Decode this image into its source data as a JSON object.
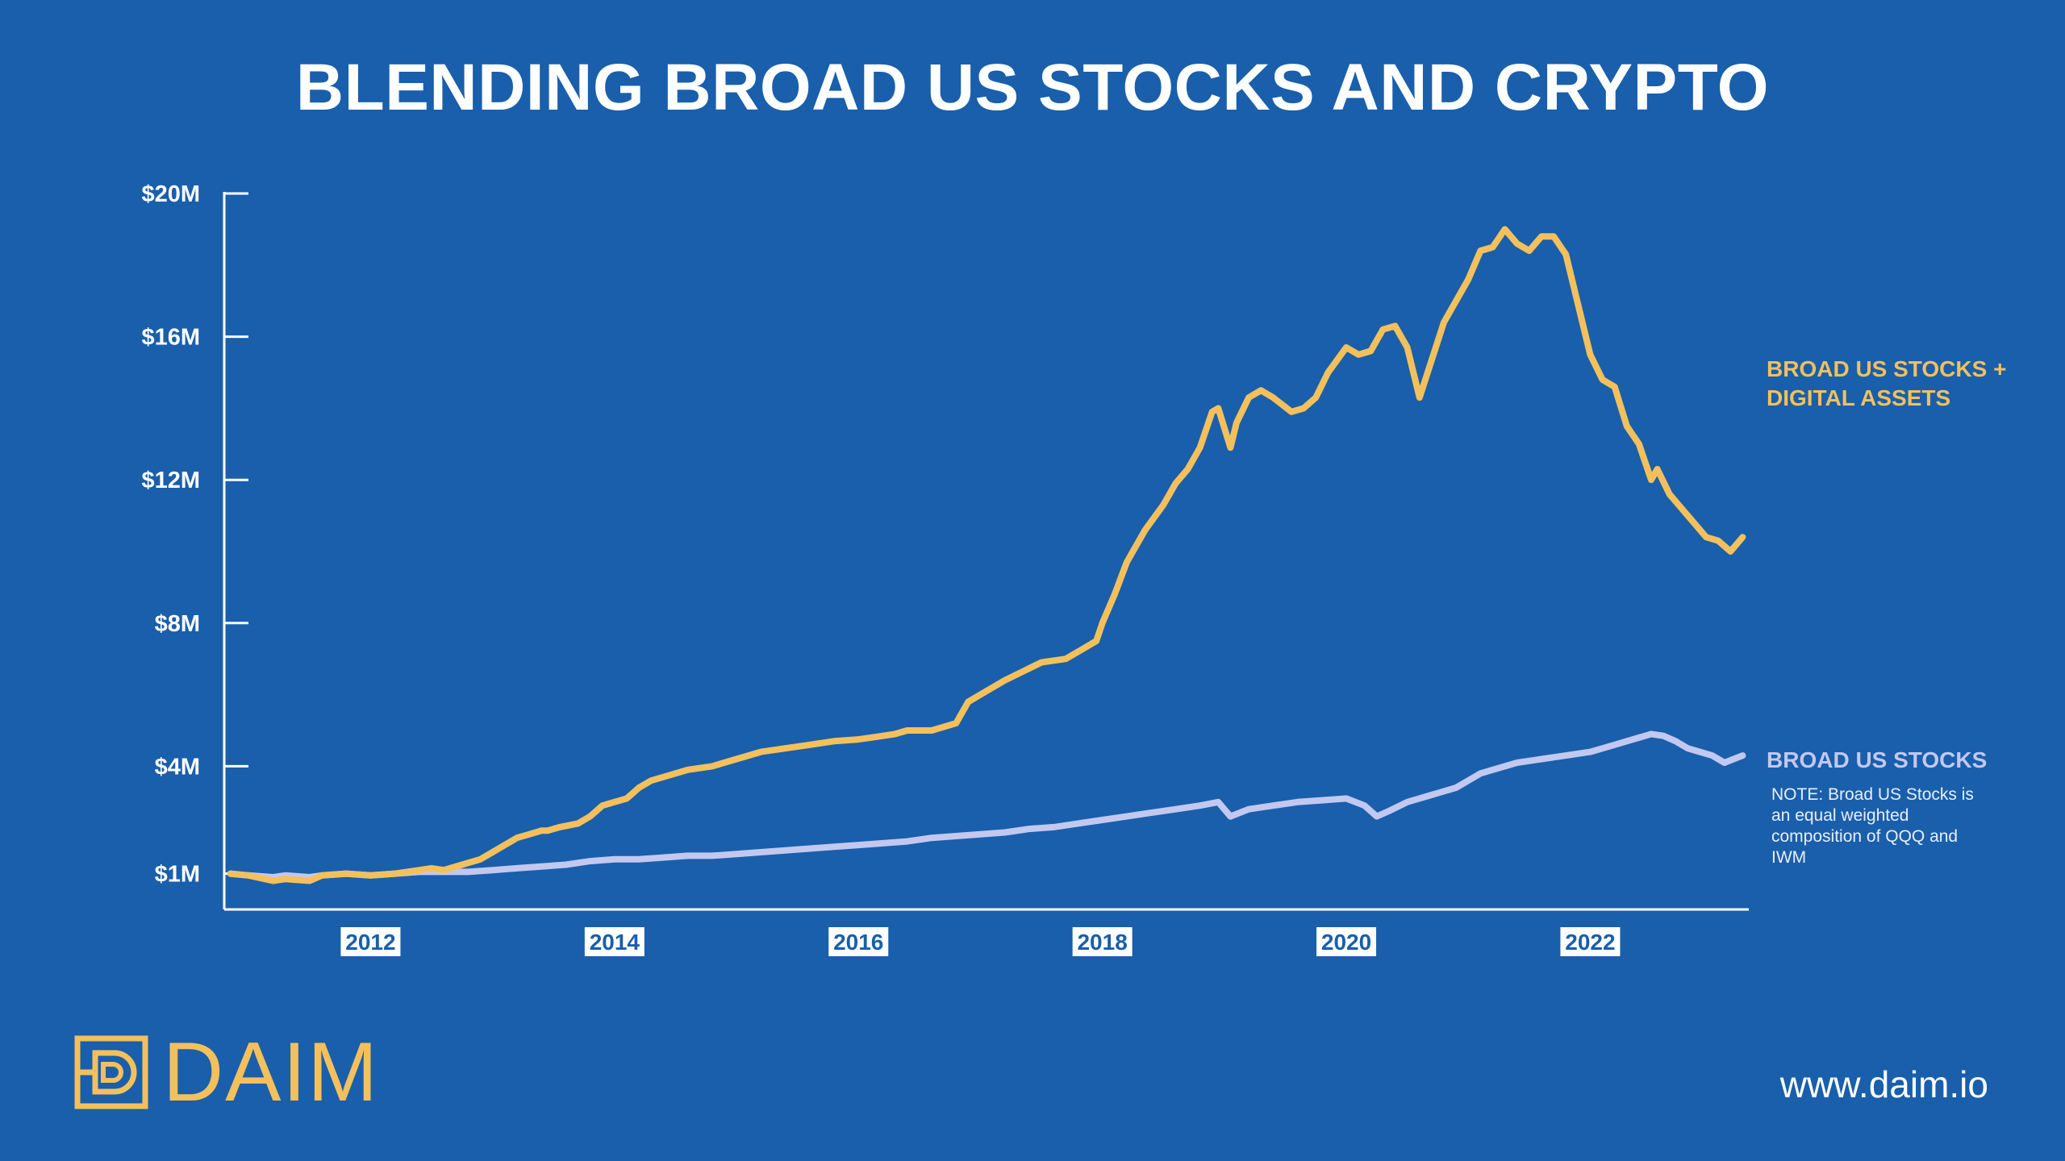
{
  "header": {
    "title": "BLENDING BROAD US STOCKS AND CRYPTO"
  },
  "colors": {
    "background": "#195fab",
    "crypto_series": "#f4c05c",
    "stocks_series": "#c3c8f0",
    "axis": "#ffffff"
  },
  "chart_data": {
    "type": "line",
    "title": "BLENDING BROAD US STOCKS AND CRYPTO",
    "xlabel": "",
    "ylabel": "",
    "xlim": [
      2010.8,
      2023.3
    ],
    "ylim": [
      0,
      20
    ],
    "y_ticks": [
      {
        "value": 1,
        "label": "$1M"
      },
      {
        "value": 4,
        "label": "$4M"
      },
      {
        "value": 8,
        "label": "$8M"
      },
      {
        "value": 12,
        "label": "$12M"
      },
      {
        "value": 16,
        "label": "$16M"
      },
      {
        "value": 20,
        "label": "$20M"
      }
    ],
    "x_ticks": [
      {
        "value": 2012,
        "label": "2012"
      },
      {
        "value": 2014,
        "label": "2014"
      },
      {
        "value": 2016,
        "label": "2016"
      },
      {
        "value": 2018,
        "label": "2018"
      },
      {
        "value": 2020,
        "label": "2020"
      },
      {
        "value": 2022,
        "label": "2022"
      }
    ],
    "series": [
      {
        "name": "BROAD US STOCKS + DIGITAL ASSETS",
        "color": "#f4c05c",
        "x": [
          2010.85,
          2011.0,
          2011.2,
          2011.3,
          2011.5,
          2011.6,
          2011.8,
          2012.0,
          2012.2,
          2012.4,
          2012.5,
          2012.6,
          2012.7,
          2012.75,
          2012.9,
          2013.0,
          2013.1,
          2013.2,
          2013.3,
          2013.4,
          2013.45,
          2013.55,
          2013.7,
          2013.8,
          2013.9,
          2014.1,
          2014.2,
          2014.3,
          2014.5,
          2014.6,
          2014.8,
          2015.0,
          2015.2,
          2015.4,
          2015.6,
          2015.8,
          2016.0,
          2016.1,
          2016.3,
          2016.4,
          2016.6,
          2016.8,
          2016.9,
          2017.0,
          2017.2,
          2017.5,
          2017.7,
          2017.85,
          2017.95,
          2018.0,
          2018.1,
          2018.2,
          2018.35,
          2018.5,
          2018.6,
          2018.7,
          2018.8,
          2018.9,
          2018.95,
          2019.05,
          2019.1,
          2019.2,
          2019.3,
          2019.4,
          2019.55,
          2019.65,
          2019.75,
          2019.85,
          2020.0,
          2020.1,
          2020.2,
          2020.3,
          2020.4,
          2020.5,
          2020.6,
          2020.8,
          2021.0,
          2021.1,
          2021.2,
          2021.3,
          2021.4,
          2021.5,
          2021.6,
          2021.7,
          2021.8,
          2021.9,
          2022.0,
          2022.1,
          2022.2,
          2022.3,
          2022.4,
          2022.5,
          2022.55,
          2022.65,
          2022.75,
          2022.85,
          2022.95,
          2023.05,
          2023.15,
          2023.25
        ],
        "values": [
          1.0,
          0.95,
          0.8,
          0.85,
          0.8,
          0.95,
          1.0,
          0.95,
          1.0,
          1.1,
          1.15,
          1.1,
          1.2,
          1.25,
          1.4,
          1.6,
          1.8,
          2.0,
          2.1,
          2.2,
          2.2,
          2.3,
          2.4,
          2.6,
          2.9,
          3.1,
          3.4,
          3.6,
          3.8,
          3.9,
          4.0,
          4.2,
          4.4,
          4.5,
          4.6,
          4.7,
          4.75,
          4.8,
          4.9,
          5.0,
          5.0,
          5.2,
          5.8,
          6.0,
          6.4,
          6.9,
          7.0,
          7.3,
          7.5,
          8.0,
          8.8,
          9.7,
          10.6,
          11.3,
          11.9,
          12.3,
          12.9,
          13.9,
          14.0,
          12.9,
          13.6,
          14.3,
          14.5,
          14.3,
          13.9,
          14.0,
          14.3,
          15.0,
          15.7,
          15.5,
          15.6,
          16.2,
          16.3,
          15.7,
          14.3,
          16.4,
          17.6,
          18.4,
          18.5,
          19.0,
          18.6,
          18.4,
          18.8,
          18.8,
          18.3,
          16.9,
          15.5,
          14.8,
          14.6,
          13.5,
          13.0,
          12.0,
          12.3,
          11.6,
          11.2,
          10.8,
          10.4,
          10.3,
          10.0,
          10.4
        ]
      },
      {
        "name": "BROAD US STOCKS",
        "color": "#c3c8f0",
        "x": [
          2010.85,
          2011.0,
          2011.2,
          2011.3,
          2011.5,
          2011.6,
          2011.8,
          2012.0,
          2012.2,
          2012.4,
          2012.6,
          2012.8,
          2013.0,
          2013.2,
          2013.4,
          2013.6,
          2013.8,
          2014.0,
          2014.2,
          2014.4,
          2014.6,
          2014.8,
          2015.0,
          2015.2,
          2015.4,
          2015.6,
          2015.8,
          2016.0,
          2016.2,
          2016.4,
          2016.6,
          2016.8,
          2017.0,
          2017.2,
          2017.4,
          2017.6,
          2017.8,
          2018.0,
          2018.2,
          2018.4,
          2018.6,
          2018.8,
          2018.95,
          2019.05,
          2019.2,
          2019.4,
          2019.6,
          2019.8,
          2020.0,
          2020.15,
          2020.25,
          2020.35,
          2020.5,
          2020.7,
          2020.9,
          2021.0,
          2021.1,
          2021.2,
          2021.4,
          2021.6,
          2021.8,
          2022.0,
          2022.1,
          2022.2,
          2022.3,
          2022.4,
          2022.5,
          2022.6,
          2022.7,
          2022.8,
          2022.9,
          2023.0,
          2023.1,
          2023.25
        ],
        "values": [
          1.0,
          0.95,
          0.9,
          0.95,
          0.9,
          0.95,
          1.0,
          0.95,
          1.0,
          1.05,
          1.05,
          1.05,
          1.1,
          1.15,
          1.2,
          1.25,
          1.35,
          1.4,
          1.4,
          1.45,
          1.5,
          1.5,
          1.55,
          1.6,
          1.65,
          1.7,
          1.75,
          1.8,
          1.85,
          1.9,
          2.0,
          2.05,
          2.1,
          2.15,
          2.25,
          2.3,
          2.4,
          2.5,
          2.6,
          2.7,
          2.8,
          2.9,
          3.0,
          2.6,
          2.8,
          2.9,
          3.0,
          3.05,
          3.1,
          2.9,
          2.6,
          2.75,
          3.0,
          3.2,
          3.4,
          3.6,
          3.8,
          3.9,
          4.1,
          4.2,
          4.3,
          4.4,
          4.5,
          4.6,
          4.7,
          4.8,
          4.9,
          4.85,
          4.7,
          4.5,
          4.4,
          4.3,
          4.1,
          4.3
        ]
      }
    ]
  },
  "labels": {
    "crypto_label": "BROAD US STOCKS + DIGITAL ASSETS",
    "stocks_label": "BROAD US STOCKS",
    "note": "NOTE: Broad US Stocks is an equal weighted composition of QQQ and IWM"
  },
  "footer": {
    "logo_text": "DAIM",
    "url": "www.daim.io"
  }
}
